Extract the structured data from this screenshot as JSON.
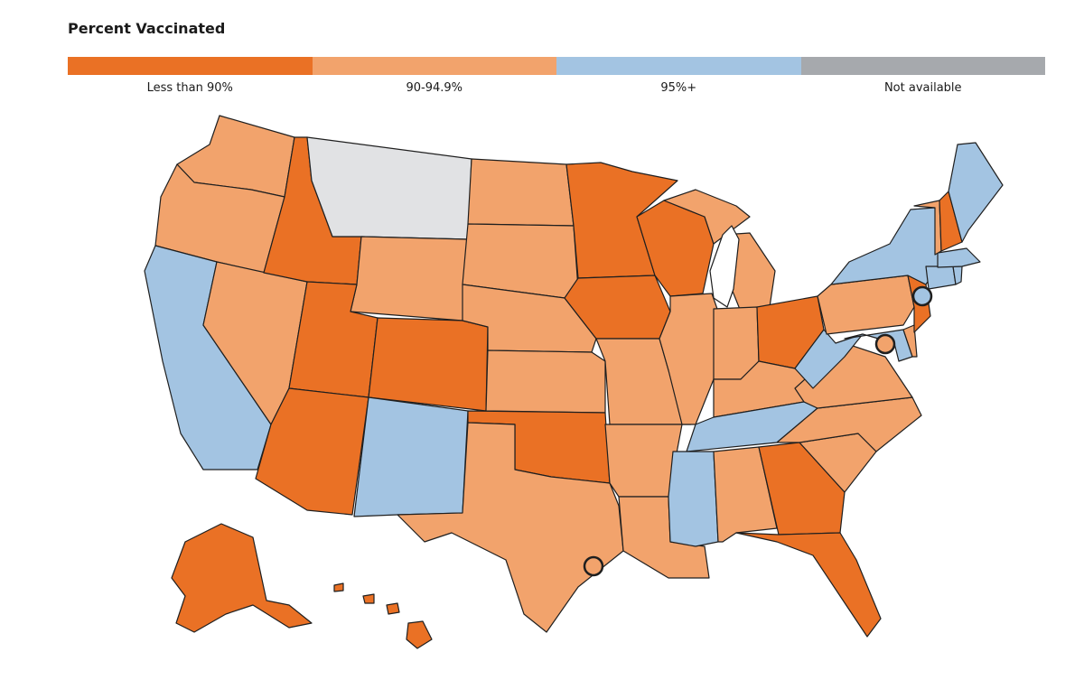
{
  "title": "Percent Vaccinated",
  "legend": [
    {
      "label": "Less than 90%",
      "color": "#ea7125"
    },
    {
      "label": "90-94.9%",
      "color": "#f2a36c"
    },
    {
      "label": "95%+",
      "color": "#a3c4e2"
    },
    {
      "label": "Not available",
      "color": "#a6a9ad"
    }
  ],
  "map_colors": {
    "low": "#ea7125",
    "mid": "#f2a36c",
    "high": "#a3c4e2",
    "na": "#e1e2e4",
    "lake": "#ffffff"
  },
  "states": {
    "WA": "mid",
    "OR": "mid",
    "CA": "high",
    "NV": "mid",
    "ID": "low",
    "MT": "na",
    "WY": "mid",
    "UT": "low",
    "AZ": "low",
    "CO": "low",
    "NM": "high",
    "ND": "mid",
    "SD": "mid",
    "NE": "mid",
    "KS": "mid",
    "OK": "low",
    "TX": "mid",
    "MN": "low",
    "IA": "low",
    "MO": "mid",
    "AR": "mid",
    "LA": "mid",
    "WI": "low",
    "IL": "mid",
    "MI": "mid",
    "IN": "mid",
    "OH": "low",
    "KY": "mid",
    "TN": "high",
    "MS": "high",
    "AL": "mid",
    "GA": "low",
    "FL": "low",
    "SC": "mid",
    "NC": "mid",
    "VA": "mid",
    "WV": "high",
    "PA": "mid",
    "NY": "high",
    "VT": "mid",
    "NH": "low",
    "ME": "high",
    "MA": "high",
    "RI": "high",
    "CT": "high",
    "NJ": "low",
    "DE": "mid",
    "MD": "high",
    "AK": "low",
    "HI": "low"
  },
  "cities": [
    {
      "name": "New York City",
      "level": "high"
    },
    {
      "name": "Washington, D.C.",
      "level": "mid"
    },
    {
      "name": "Houston",
      "level": "mid"
    }
  ]
}
